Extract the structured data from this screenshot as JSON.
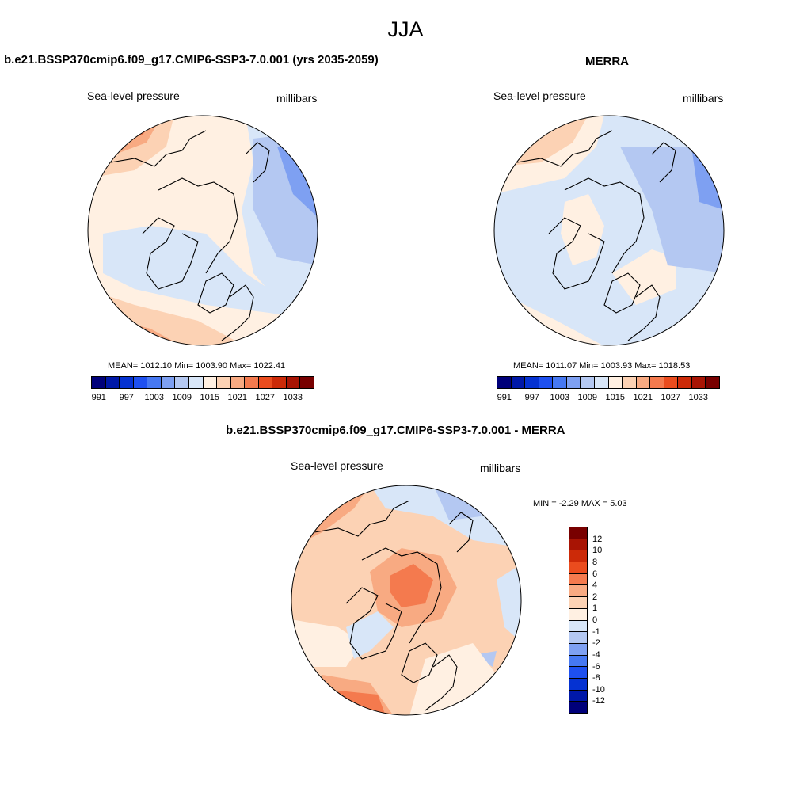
{
  "figure": {
    "season": "JJA"
  },
  "panels": {
    "model": {
      "title": "b.e21.BSSP370cmip6.f09_g17.CMIP6-SSP3-7.0.001 (yrs 2035-2059)",
      "variable": "Sea-level pressure",
      "units": "millibars",
      "stats": "MEAN= 1012.10   Min= 1003.90   Max= 1022.41"
    },
    "obs": {
      "title": "MERRA",
      "variable": "Sea-level pressure",
      "units": "millibars",
      "stats": "MEAN= 1011.07   Min= 1003.93   Max= 1018.53"
    },
    "diff": {
      "title": "b.e21.BSSP370cmip6.f09_g17.CMIP6-SSP3-7.0.001 - MERRA",
      "variable": "Sea-level pressure",
      "units": "millibars",
      "stats": "MIN =  -2.29 MAX =   5.03"
    }
  },
  "colorbars": {
    "absolute": {
      "colors": [
        "#00007a",
        "#0018a8",
        "#0532d2",
        "#1e50f0",
        "#4678f2",
        "#7ea0f2",
        "#b4c8f2",
        "#d8e6f8",
        "#fff0e2",
        "#fcd2b4",
        "#f8aa82",
        "#f47a4e",
        "#ea4c1e",
        "#cc2a08",
        "#a81404",
        "#780000"
      ],
      "tick_labels": [
        "991",
        "997",
        "1003",
        "1009",
        "1015",
        "1021",
        "1027",
        "1033"
      ]
    },
    "difference": {
      "colors_top_to_bottom": [
        "#780000",
        "#a81404",
        "#cc2a08",
        "#ea4c1e",
        "#f47a4e",
        "#f8aa82",
        "#fcd2b4",
        "#fff0e2",
        "#d8e6f8",
        "#b4c8f2",
        "#7ea0f2",
        "#4678f2",
        "#1e50f0",
        "#0532d2",
        "#0018a8",
        "#00007a"
      ],
      "tick_labels": [
        "12",
        "10",
        "8",
        "6",
        "4",
        "2",
        "1",
        "0",
        "-1",
        "-2",
        "-4",
        "-6",
        "-8",
        "-10",
        "-12"
      ]
    }
  }
}
